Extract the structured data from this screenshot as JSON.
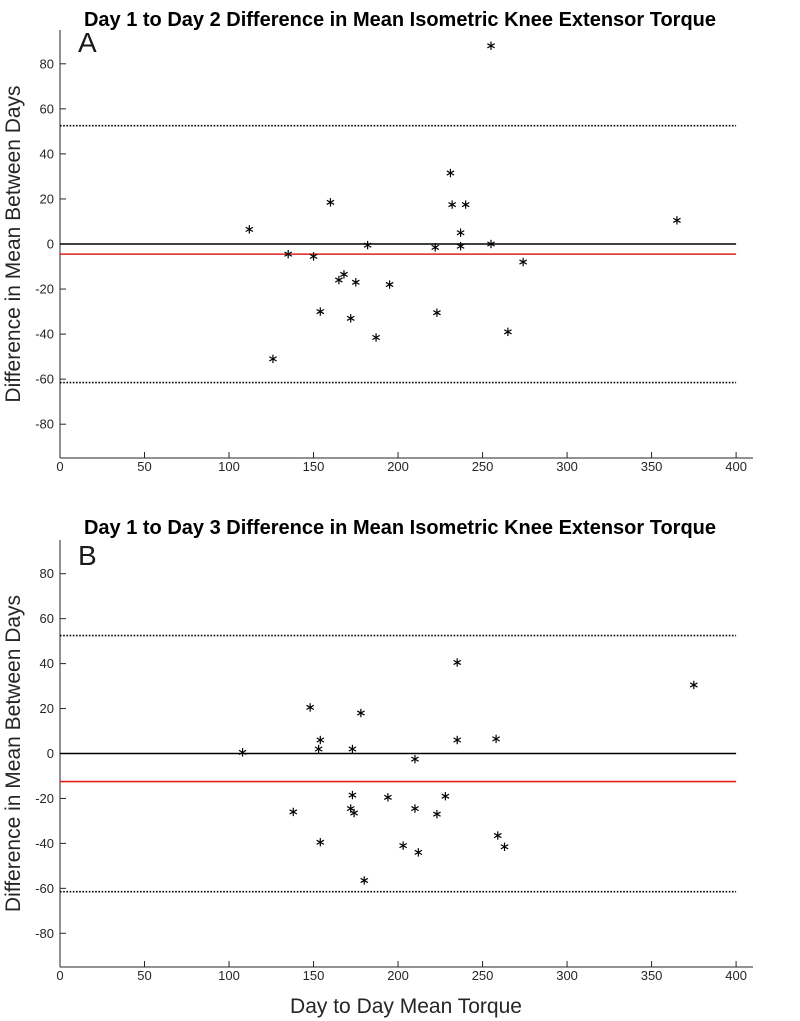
{
  "chart_data": [
    {
      "type": "scatter",
      "panel_label": "A",
      "title": "Day 1 to Day 2 Difference in Mean Isometric Knee Extensor Torque",
      "xlabel": "",
      "ylabel": "Difference in Mean Between Days",
      "xlim": [
        0,
        410
      ],
      "ylim": [
        -95,
        95
      ],
      "xticks": [
        0,
        50,
        100,
        150,
        200,
        250,
        300,
        350,
        400
      ],
      "yticks": [
        -80,
        -60,
        -40,
        -20,
        0,
        20,
        40,
        60,
        80
      ],
      "marker": "asterisk",
      "reference_lines": {
        "zero": {
          "value": 0,
          "color": "#000000",
          "style": "solid"
        },
        "mean_difference": {
          "value": -4.5,
          "color": "#e0201c",
          "style": "solid"
        },
        "upper_limit": {
          "value": 52.5,
          "color": "#000000",
          "style": "dotted"
        },
        "lower_limit": {
          "value": -61.5,
          "color": "#000000",
          "style": "dotted"
        }
      },
      "points": [
        {
          "x": 112,
          "y": 6.5
        },
        {
          "x": 126,
          "y": -51
        },
        {
          "x": 135,
          "y": -4.5
        },
        {
          "x": 150,
          "y": -5.5
        },
        {
          "x": 154,
          "y": -30
        },
        {
          "x": 160,
          "y": 18.5
        },
        {
          "x": 165,
          "y": -16
        },
        {
          "x": 168,
          "y": -13.5
        },
        {
          "x": 172,
          "y": -33
        },
        {
          "x": 175,
          "y": -17
        },
        {
          "x": 182,
          "y": -0.5
        },
        {
          "x": 187,
          "y": -41.5
        },
        {
          "x": 195,
          "y": -18
        },
        {
          "x": 222,
          "y": -1.5
        },
        {
          "x": 223,
          "y": -30.5
        },
        {
          "x": 231,
          "y": 31.5
        },
        {
          "x": 232,
          "y": 17.5
        },
        {
          "x": 237,
          "y": -1
        },
        {
          "x": 237,
          "y": 5
        },
        {
          "x": 240,
          "y": 17.5
        },
        {
          "x": 255,
          "y": 0
        },
        {
          "x": 255,
          "y": 88
        },
        {
          "x": 265,
          "y": -39
        },
        {
          "x": 274,
          "y": -8
        },
        {
          "x": 365,
          "y": 10.5
        }
      ]
    },
    {
      "type": "scatter",
      "panel_label": "B",
      "title": "Day 1 to Day 3 Difference in Mean Isometric Knee Extensor Torque",
      "xlabel": "Day to Day Mean Torque",
      "ylabel": "Difference in Mean Between Days",
      "xlim": [
        0,
        410
      ],
      "ylim": [
        -95,
        95
      ],
      "xticks": [
        0,
        50,
        100,
        150,
        200,
        250,
        300,
        350,
        400
      ],
      "yticks": [
        -80,
        -60,
        -40,
        -20,
        0,
        20,
        40,
        60,
        80
      ],
      "marker": "asterisk",
      "reference_lines": {
        "zero": {
          "value": 0,
          "color": "#000000",
          "style": "solid"
        },
        "mean_difference": {
          "value": -12.5,
          "color": "#e0201c",
          "style": "solid"
        },
        "upper_limit": {
          "value": 52.5,
          "color": "#000000",
          "style": "dotted"
        },
        "lower_limit": {
          "value": -61.5,
          "color": "#000000",
          "style": "dotted"
        }
      },
      "points": [
        {
          "x": 108,
          "y": 0.5
        },
        {
          "x": 138,
          "y": -26
        },
        {
          "x": 148,
          "y": 20.5
        },
        {
          "x": 153,
          "y": 2
        },
        {
          "x": 154,
          "y": 6
        },
        {
          "x": 154,
          "y": -39.5
        },
        {
          "x": 172,
          "y": -24.5
        },
        {
          "x": 173,
          "y": 2
        },
        {
          "x": 173,
          "y": -18.5
        },
        {
          "x": 174,
          "y": -26.5
        },
        {
          "x": 178,
          "y": 18
        },
        {
          "x": 180,
          "y": -56.5
        },
        {
          "x": 194,
          "y": -19.5
        },
        {
          "x": 203,
          "y": -41
        },
        {
          "x": 210,
          "y": -2.5
        },
        {
          "x": 210,
          "y": -24.5
        },
        {
          "x": 212,
          "y": -44
        },
        {
          "x": 223,
          "y": -27
        },
        {
          "x": 228,
          "y": -19
        },
        {
          "x": 235,
          "y": 6
        },
        {
          "x": 235,
          "y": 40.5
        },
        {
          "x": 258,
          "y": 6.5
        },
        {
          "x": 259,
          "y": -36.5
        },
        {
          "x": 263,
          "y": -41.5
        },
        {
          "x": 375,
          "y": 30.5
        }
      ]
    }
  ]
}
